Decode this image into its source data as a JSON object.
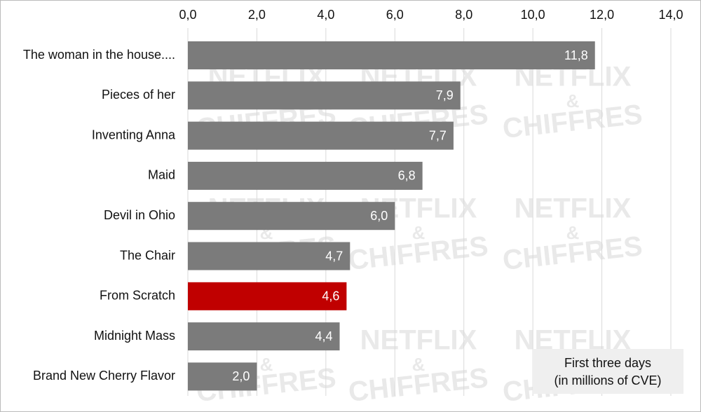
{
  "chart_data": {
    "type": "bar",
    "orientation": "horizontal",
    "categories": [
      "The woman in the house....",
      "Pieces of her",
      "Inventing Anna",
      "Maid",
      "Devil in Ohio",
      "The Chair",
      "From Scratch",
      "Midnight Mass",
      "Brand New Cherry Flavor"
    ],
    "values": [
      11.8,
      7.9,
      7.7,
      6.8,
      6.0,
      4.7,
      4.6,
      4.4,
      2.0
    ],
    "value_labels": [
      "11,8",
      "7,9",
      "7,7",
      "6,8",
      "6,0",
      "4,7",
      "4,6",
      "4,4",
      "2,0"
    ],
    "colors": [
      "#7b7b7b",
      "#7b7b7b",
      "#7b7b7b",
      "#7b7b7b",
      "#7b7b7b",
      "#7b7b7b",
      "#c00000",
      "#7b7b7b",
      "#7b7b7b"
    ],
    "xlim": [
      0,
      14
    ],
    "xticks": [
      {
        "value": 0,
        "label": "0,0"
      },
      {
        "value": 2,
        "label": "2,0"
      },
      {
        "value": 4,
        "label": "4,0"
      },
      {
        "value": 6,
        "label": "6,0"
      },
      {
        "value": 8,
        "label": "8,0"
      },
      {
        "value": 10,
        "label": "10,0"
      },
      {
        "value": 12,
        "label": "12,0"
      },
      {
        "value": 14,
        "label": "14,0"
      }
    ],
    "grid": true,
    "annotation": [
      "First three days",
      "(in millions of CVE)"
    ],
    "watermark": [
      "NETFLIX",
      "&",
      "CHIFFRES"
    ]
  }
}
